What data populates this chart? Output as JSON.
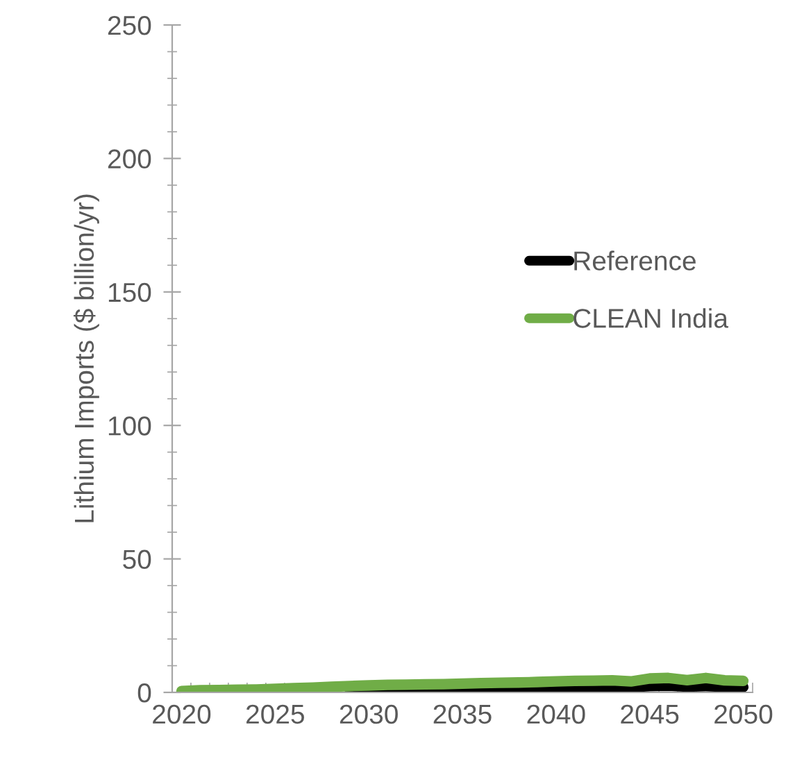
{
  "chart_data": {
    "type": "line",
    "ylabel": "Lithium Imports ($ billion/yr)",
    "categories": [
      "2020",
      null,
      null,
      null,
      null,
      "2025",
      null,
      null,
      null,
      null,
      "2030",
      null,
      null,
      null,
      null,
      "2035",
      null,
      null,
      null,
      null,
      "2040",
      null,
      null,
      null,
      null,
      "2045",
      null,
      null,
      null,
      null,
      "2050"
    ],
    "series": [
      {
        "name": "Reference",
        "color": "#000000",
        "values": [
          null,
          null,
          null,
          null,
          null,
          null,
          null,
          null,
          null,
          0.3,
          0.4,
          0.5,
          0.6,
          0.7,
          0.8,
          0.9,
          1.0,
          1.1,
          1.2,
          1.3,
          1.5,
          1.6,
          1.8,
          1.9,
          2.0,
          2.4,
          2.5,
          2.2,
          2.4,
          2.1,
          2.0
        ]
      },
      {
        "name": "CLEAN India",
        "color": "#70ad47",
        "values": [
          0.5,
          0.8,
          0.9,
          1.0,
          1.1,
          1.3,
          1.6,
          1.8,
          2.1,
          2.4,
          2.6,
          2.8,
          2.9,
          3.0,
          3.1,
          3.3,
          3.5,
          3.6,
          3.7,
          3.9,
          4.1,
          4.3,
          4.4,
          4.5,
          4.1,
          5.2,
          5.4,
          4.6,
          5.4,
          4.5,
          4.3
        ]
      }
    ],
    "ylim": [
      0,
      250
    ],
    "yticks": [
      0,
      50,
      100,
      150,
      200,
      250
    ],
    "grid": false,
    "legend": "right",
    "line_style": "solid",
    "marker": "none"
  }
}
